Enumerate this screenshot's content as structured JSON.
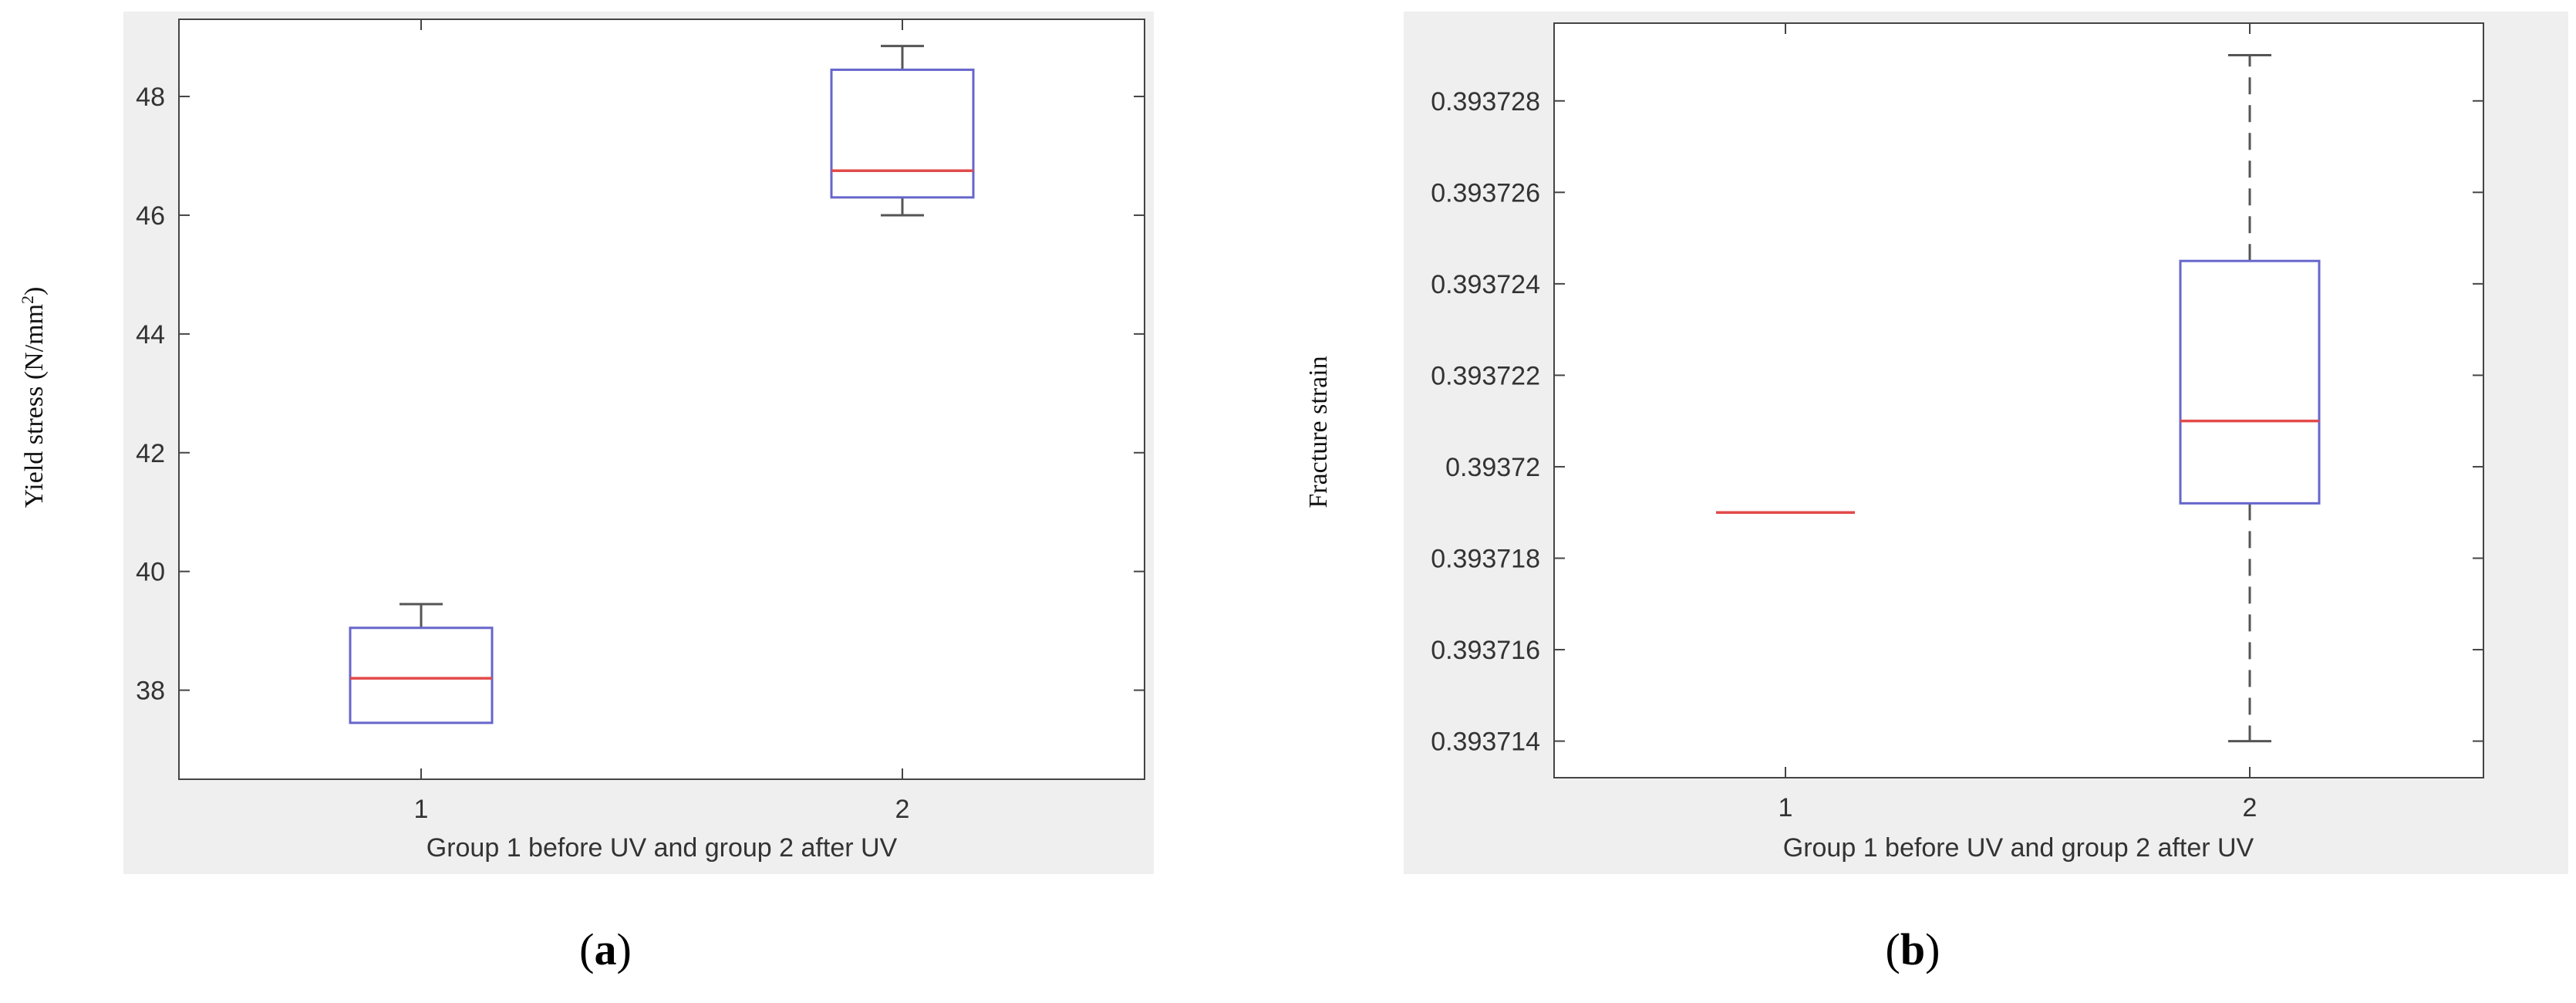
{
  "chart_data": [
    {
      "type": "box",
      "panel_label": "a",
      "xlabel": "Group 1 before UV and group 2 after UV",
      "ylabel": "Yield stress (N/mm",
      "ylabel_sup": "2",
      "ylabel_close": ")",
      "categories": [
        "1",
        "2"
      ],
      "yticks": [
        "38",
        "40",
        "42",
        "44",
        "46",
        "48"
      ],
      "ytick_values": [
        38,
        40,
        42,
        44,
        46,
        48
      ],
      "ylim": [
        36.5,
        49.3
      ],
      "boxes": [
        {
          "group": "1",
          "whisker_low": 37.45,
          "q1": 37.45,
          "median": 38.2,
          "q3": 39.05,
          "whisker_high": 39.45,
          "dashed_whiskers": false
        },
        {
          "group": "2",
          "whisker_low": 46.0,
          "q1": 46.3,
          "median": 46.75,
          "q3": 48.45,
          "whisker_high": 48.85,
          "dashed_whiskers": false
        }
      ],
      "colors": {
        "box": "#6666cc",
        "median": "#e24a4a",
        "whisker": "#555555",
        "axis": "#444444",
        "background": "#efefef"
      }
    },
    {
      "type": "box",
      "panel_label": "b",
      "xlabel": "Group 1 before UV and group 2 after UV",
      "ylabel": "Fracture strain",
      "categories": [
        "1",
        "2"
      ],
      "yticks": [
        "0.393714",
        "0.393716",
        "0.393718",
        "0.39372",
        "0.393722",
        "0.393724",
        "0.393726",
        "0.393728"
      ],
      "ytick_values": [
        0.393714,
        0.393716,
        0.393718,
        0.39372,
        0.393722,
        0.393724,
        0.393726,
        0.393728
      ],
      "ylim": [
        0.3937132,
        0.3937297
      ],
      "boxes": [
        {
          "group": "1",
          "whisker_low": 0.393719,
          "q1": 0.393719,
          "median": 0.393719,
          "q3": 0.393719,
          "whisker_high": 0.393719,
          "dashed_whiskers": false
        },
        {
          "group": "2",
          "whisker_low": 0.393714,
          "q1": 0.3937192,
          "median": 0.393721,
          "q3": 0.3937245,
          "whisker_high": 0.393729,
          "dashed_whiskers": true
        }
      ],
      "colors": {
        "box": "#6666cc",
        "median": "#e24a4a",
        "whisker": "#555555",
        "axis": "#444444",
        "background": "#efefef"
      }
    }
  ]
}
